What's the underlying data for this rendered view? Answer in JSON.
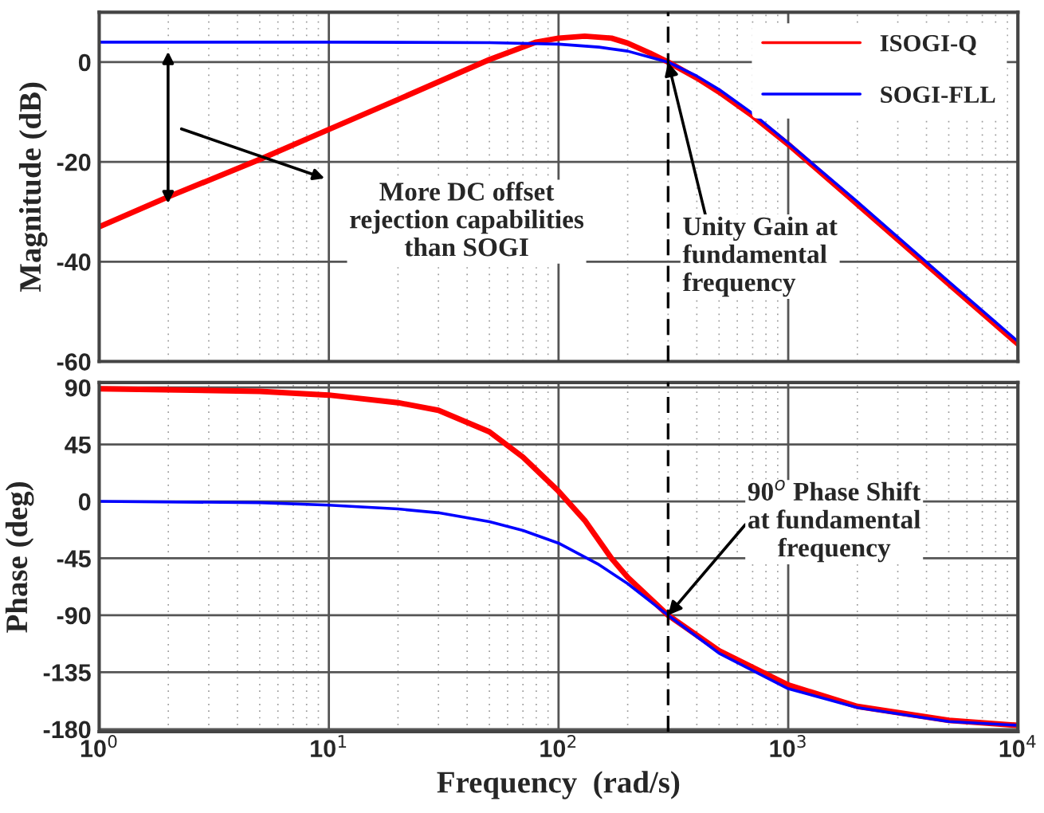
{
  "chart_data": [
    {
      "type": "line",
      "ylabel": "Magnitude (dB)",
      "log": "x",
      "grid": true,
      "legend": "top right",
      "tick_labels": "y",
      "xlim": [
        1,
        10000
      ],
      "xticks": [
        {
          "value": 1,
          "label": null
        },
        {
          "value": 10,
          "label": null
        },
        {
          "value": 100,
          "label": null
        },
        {
          "value": 1000,
          "label": null
        },
        {
          "value": 10000,
          "label": null
        }
      ],
      "ylim": [
        -60,
        10
      ],
      "yticks": [
        -60,
        -40,
        -20,
        0
      ],
      "series": [
        {
          "name": "ISOGI-Q",
          "color": "#ff0000",
          "x": [
            1,
            2,
            5,
            10,
            20,
            50,
            80,
            100,
            130,
            170,
            200,
            250,
            300,
            400,
            500,
            700,
            1000,
            2000,
            5000,
            10000
          ],
          "values": [
            -33,
            -27,
            -19.5,
            -13.5,
            -7.5,
            0.5,
            4,
            4.8,
            5.2,
            4.8,
            3.8,
            1.8,
            0,
            -3.2,
            -6,
            -10.8,
            -16.5,
            -28.5,
            -44.5,
            -56.5
          ]
        },
        {
          "name": "SOGI-FLL",
          "color": "#0000ff",
          "x": [
            1,
            10,
            50,
            100,
            150,
            200,
            250,
            300,
            400,
            500,
            700,
            1000,
            2000,
            5000,
            10000
          ],
          "values": [
            4,
            4,
            3.9,
            3.6,
            3,
            2.2,
            1,
            0,
            -2.8,
            -5.5,
            -10.3,
            -16.2,
            -28,
            -44,
            -56
          ]
        }
      ],
      "ref_lines": [
        {
          "axis": "x",
          "value": 300,
          "color": "#000000",
          "line_style": "dashed"
        }
      ],
      "annotations": [
        "More DC offset\nrejection capabilities\nthan SOGI",
        {
          "text": "Unity Gain at\nfundamental\nfrequency",
          "x": 300,
          "y": 0
        }
      ]
    },
    {
      "type": "line",
      "xlabel": "Frequency  (rad/s)",
      "ylabel": "Phase (deg)",
      "log": "x",
      "grid": true,
      "xlim": [
        1,
        10000
      ],
      "xticks": [
        {
          "value": 1,
          "label": "10$^{0}$"
        },
        {
          "value": 10,
          "label": "10$^{1}$"
        },
        {
          "value": 100,
          "label": "10$^{2}$"
        },
        {
          "value": 1000,
          "label": "10$^{3}$"
        },
        {
          "value": 10000,
          "label": "10$^{4}$"
        }
      ],
      "ylim": [
        -182,
        94
      ],
      "yticks": [
        -180,
        -135,
        -90,
        -45,
        0,
        45,
        90
      ],
      "series": [
        {
          "color": "#ff0000",
          "x": [
            1,
            5,
            10,
            20,
            30,
            50,
            70,
            100,
            130,
            170,
            200,
            300,
            500,
            1000,
            2000,
            5000,
            10000
          ],
          "values": [
            89,
            87,
            84,
            78,
            72,
            55,
            35,
            8,
            -15,
            -45,
            -60,
            -90,
            -118,
            -145,
            -162,
            -173,
            -177
          ]
        },
        {
          "color": "#0000ff",
          "x": [
            1,
            5,
            10,
            20,
            30,
            50,
            70,
            100,
            150,
            200,
            300,
            500,
            1000,
            2000,
            5000,
            10000
          ],
          "values": [
            0,
            -1,
            -3,
            -6,
            -9,
            -16,
            -23,
            -33,
            -50,
            -65,
            -90,
            -120,
            -148,
            -163,
            -174,
            -177
          ]
        }
      ],
      "ref_lines": [
        {
          "axis": "x",
          "value": 300,
          "color": "#000000",
          "line_style": "dashed"
        }
      ],
      "annotations": [
        {
          "text": "90$^{o}$ Phase Shift\nat fundamental\nfrequency",
          "x": 300,
          "y": -90
        }
      ]
    }
  ]
}
